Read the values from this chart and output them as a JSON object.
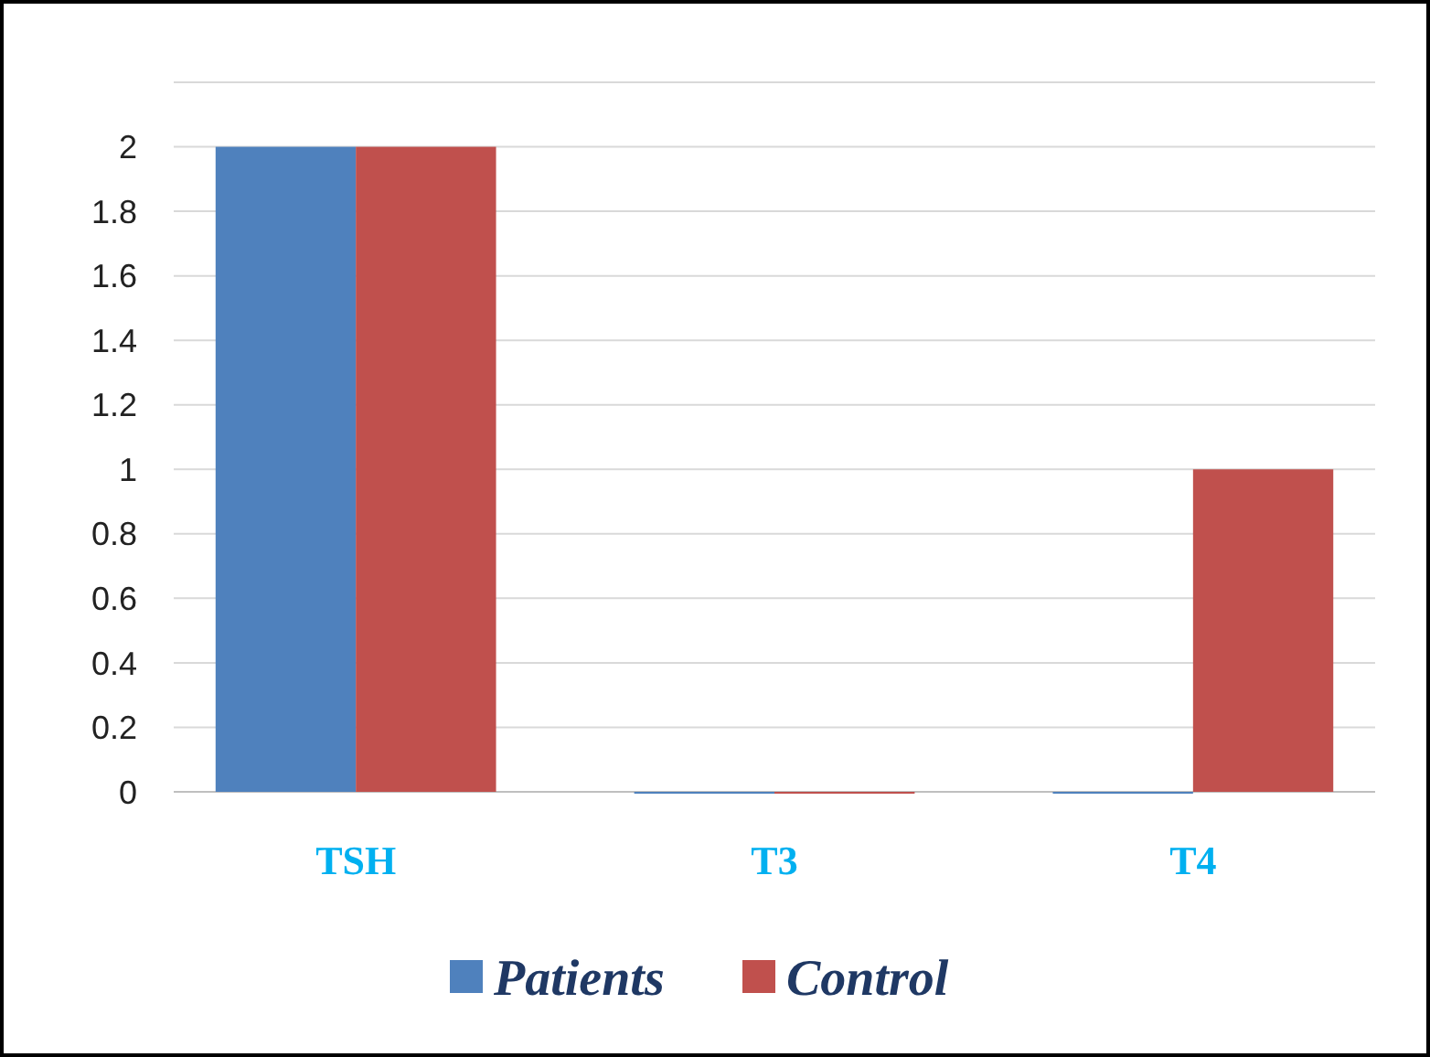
{
  "chart_data": {
    "type": "bar",
    "categories": [
      "TSH",
      "T3",
      "T4"
    ],
    "series": [
      {
        "name": "Patients",
        "color": "#4f81bd",
        "values": [
          2,
          0,
          0
        ]
      },
      {
        "name": "Control",
        "color": "#c0504d",
        "values": [
          2,
          0,
          1
        ]
      }
    ],
    "ylim": [
      0,
      2.2
    ],
    "yticks": [
      0,
      0.2,
      0.4,
      0.6,
      0.8,
      1,
      1.2,
      1.4,
      1.6,
      1.8,
      2,
      {
        "value": 2.2,
        "label": null
      }
    ],
    "grid": "y",
    "legend": "bottom"
  }
}
